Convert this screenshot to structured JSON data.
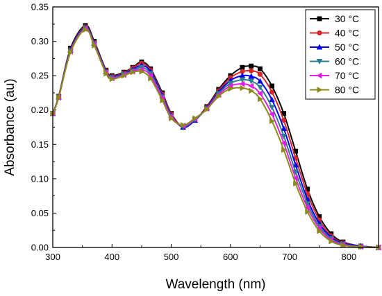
{
  "chart_data": {
    "type": "line",
    "xlabel": "Wavelength (nm)",
    "ylabel": "Absorbance (au)",
    "xlim": [
      300,
      850
    ],
    "ylim": [
      0.0,
      0.35
    ],
    "x_ticks": [
      300,
      400,
      500,
      600,
      700,
      800
    ],
    "y_ticks": [
      "0.00",
      "0.05",
      "0.10",
      "0.15",
      "0.20",
      "0.25",
      "0.30",
      "0.35"
    ],
    "grid": false,
    "legend_position": "top-right",
    "series": [
      {
        "name": "30 °C",
        "color": "#000000",
        "marker": "square",
        "points": [
          [
            300,
            0.195
          ],
          [
            310,
            0.22
          ],
          [
            330,
            0.29
          ],
          [
            355,
            0.323
          ],
          [
            370,
            0.3
          ],
          [
            390,
            0.258
          ],
          [
            400,
            0.25
          ],
          [
            420,
            0.255
          ],
          [
            435,
            0.262
          ],
          [
            450,
            0.27
          ],
          [
            465,
            0.26
          ],
          [
            485,
            0.225
          ],
          [
            500,
            0.195
          ],
          [
            520,
            0.175
          ],
          [
            540,
            0.185
          ],
          [
            560,
            0.205
          ],
          [
            580,
            0.23
          ],
          [
            600,
            0.25
          ],
          [
            620,
            0.262
          ],
          [
            635,
            0.264
          ],
          [
            650,
            0.26
          ],
          [
            670,
            0.235
          ],
          [
            690,
            0.195
          ],
          [
            710,
            0.14
          ],
          [
            730,
            0.085
          ],
          [
            750,
            0.045
          ],
          [
            770,
            0.02
          ],
          [
            790,
            0.008
          ],
          [
            820,
            0.002
          ],
          [
            850,
            0.0
          ]
        ]
      },
      {
        "name": "40 °C",
        "color": "#d62728",
        "marker": "circle",
        "points": [
          [
            300,
            0.195
          ],
          [
            310,
            0.22
          ],
          [
            330,
            0.288
          ],
          [
            355,
            0.321
          ],
          [
            370,
            0.298
          ],
          [
            390,
            0.257
          ],
          [
            400,
            0.249
          ],
          [
            420,
            0.254
          ],
          [
            435,
            0.261
          ],
          [
            450,
            0.268
          ],
          [
            465,
            0.258
          ],
          [
            485,
            0.223
          ],
          [
            500,
            0.194
          ],
          [
            520,
            0.175
          ],
          [
            540,
            0.185
          ],
          [
            560,
            0.204
          ],
          [
            580,
            0.228
          ],
          [
            600,
            0.247
          ],
          [
            620,
            0.256
          ],
          [
            635,
            0.257
          ],
          [
            650,
            0.252
          ],
          [
            670,
            0.226
          ],
          [
            690,
            0.185
          ],
          [
            710,
            0.13
          ],
          [
            730,
            0.078
          ],
          [
            750,
            0.04
          ],
          [
            770,
            0.017
          ],
          [
            790,
            0.007
          ],
          [
            820,
            0.002
          ],
          [
            850,
            0.0
          ]
        ]
      },
      {
        "name": "50 °C",
        "color": "#0000ee",
        "marker": "triangle-up",
        "points": [
          [
            300,
            0.195
          ],
          [
            310,
            0.219
          ],
          [
            330,
            0.287
          ],
          [
            355,
            0.32
          ],
          [
            370,
            0.297
          ],
          [
            390,
            0.256
          ],
          [
            400,
            0.248
          ],
          [
            420,
            0.253
          ],
          [
            435,
            0.259
          ],
          [
            450,
            0.265
          ],
          [
            465,
            0.256
          ],
          [
            485,
            0.221
          ],
          [
            500,
            0.192
          ],
          [
            520,
            0.175
          ],
          [
            540,
            0.185
          ],
          [
            560,
            0.203
          ],
          [
            580,
            0.226
          ],
          [
            600,
            0.243
          ],
          [
            620,
            0.25
          ],
          [
            635,
            0.249
          ],
          [
            650,
            0.242
          ],
          [
            670,
            0.215
          ],
          [
            690,
            0.173
          ],
          [
            710,
            0.12
          ],
          [
            730,
            0.07
          ],
          [
            750,
            0.035
          ],
          [
            770,
            0.015
          ],
          [
            790,
            0.006
          ],
          [
            820,
            0.002
          ],
          [
            850,
            0.0
          ]
        ]
      },
      {
        "name": "60 °C",
        "color": "#2e7d8c",
        "marker": "triangle-down",
        "points": [
          [
            300,
            0.195
          ],
          [
            310,
            0.219
          ],
          [
            330,
            0.286
          ],
          [
            355,
            0.319
          ],
          [
            370,
            0.296
          ],
          [
            390,
            0.255
          ],
          [
            400,
            0.247
          ],
          [
            420,
            0.252
          ],
          [
            435,
            0.257
          ],
          [
            450,
            0.262
          ],
          [
            465,
            0.253
          ],
          [
            485,
            0.219
          ],
          [
            500,
            0.191
          ],
          [
            520,
            0.176
          ],
          [
            540,
            0.186
          ],
          [
            560,
            0.202
          ],
          [
            580,
            0.224
          ],
          [
            600,
            0.239
          ],
          [
            620,
            0.244
          ],
          [
            635,
            0.242
          ],
          [
            650,
            0.233
          ],
          [
            670,
            0.204
          ],
          [
            690,
            0.162
          ],
          [
            710,
            0.11
          ],
          [
            730,
            0.064
          ],
          [
            750,
            0.031
          ],
          [
            770,
            0.013
          ],
          [
            790,
            0.005
          ],
          [
            820,
            0.001
          ],
          [
            850,
            0.0
          ]
        ]
      },
      {
        "name": "70 °C",
        "color": "#e020e0",
        "marker": "triangle-left",
        "points": [
          [
            300,
            0.195
          ],
          [
            310,
            0.218
          ],
          [
            330,
            0.285
          ],
          [
            355,
            0.318
          ],
          [
            370,
            0.295
          ],
          [
            390,
            0.254
          ],
          [
            400,
            0.246
          ],
          [
            420,
            0.251
          ],
          [
            435,
            0.256
          ],
          [
            450,
            0.259
          ],
          [
            465,
            0.25
          ],
          [
            485,
            0.217
          ],
          [
            500,
            0.19
          ],
          [
            520,
            0.177
          ],
          [
            540,
            0.187
          ],
          [
            560,
            0.202
          ],
          [
            580,
            0.222
          ],
          [
            600,
            0.235
          ],
          [
            620,
            0.238
          ],
          [
            635,
            0.235
          ],
          [
            650,
            0.224
          ],
          [
            670,
            0.194
          ],
          [
            690,
            0.152
          ],
          [
            710,
            0.101
          ],
          [
            730,
            0.058
          ],
          [
            750,
            0.028
          ],
          [
            770,
            0.011
          ],
          [
            790,
            0.004
          ],
          [
            820,
            0.001
          ],
          [
            850,
            0.0
          ]
        ]
      },
      {
        "name": "80 °C",
        "color": "#8b8b1a",
        "marker": "triangle-right",
        "points": [
          [
            300,
            0.195
          ],
          [
            310,
            0.218
          ],
          [
            330,
            0.284
          ],
          [
            355,
            0.317
          ],
          [
            370,
            0.294
          ],
          [
            390,
            0.253
          ],
          [
            400,
            0.245
          ],
          [
            420,
            0.25
          ],
          [
            435,
            0.255
          ],
          [
            450,
            0.256
          ],
          [
            465,
            0.246
          ],
          [
            485,
            0.214
          ],
          [
            500,
            0.188
          ],
          [
            520,
            0.178
          ],
          [
            540,
            0.188
          ],
          [
            560,
            0.201
          ],
          [
            580,
            0.22
          ],
          [
            600,
            0.231
          ],
          [
            620,
            0.232
          ],
          [
            635,
            0.228
          ],
          [
            650,
            0.216
          ],
          [
            670,
            0.184
          ],
          [
            690,
            0.142
          ],
          [
            710,
            0.093
          ],
          [
            730,
            0.052
          ],
          [
            750,
            0.024
          ],
          [
            770,
            0.009
          ],
          [
            790,
            0.003
          ],
          [
            820,
            0.001
          ],
          [
            850,
            0.0
          ]
        ]
      }
    ]
  }
}
